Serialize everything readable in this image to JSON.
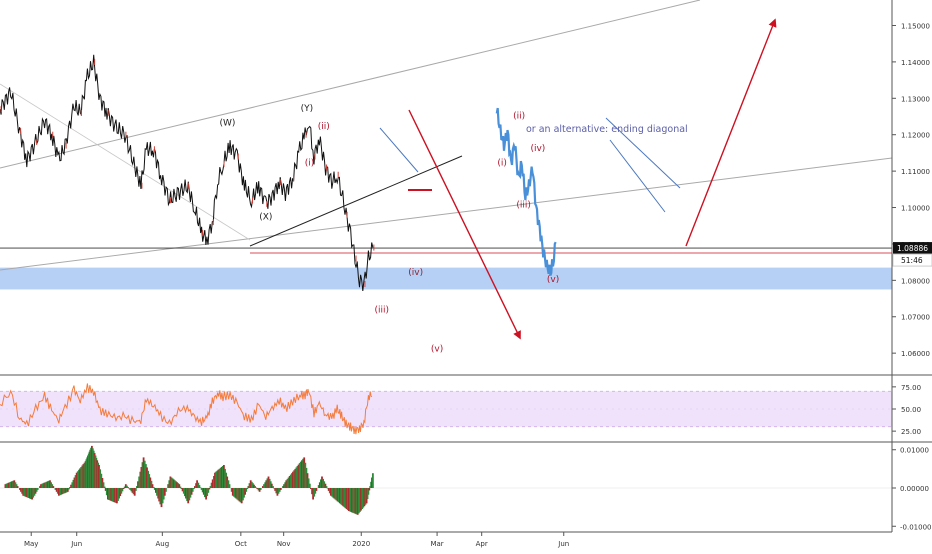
{
  "chart_data": {
    "type": "line",
    "main": {
      "price_ticks": [
        "1.15000",
        "1.14000",
        "1.13000",
        "1.12000",
        "1.11000",
        "1.10000",
        "1.09000",
        "1.08000",
        "1.07000",
        "1.06000"
      ],
      "ylim": [
        1.054,
        1.157
      ],
      "last_price": "1.08886",
      "countdown": "51:46",
      "support_zone": [
        1.0775,
        1.0835
      ],
      "horizontal_levels": [
        1.08886,
        1.0875
      ],
      "wave_labels": [
        {
          "text": "(W)",
          "t": 0.255,
          "p": 1.1225,
          "color": "#222222"
        },
        {
          "text": "(X)",
          "t": 0.298,
          "p": 1.0967,
          "color": "#222222"
        },
        {
          "text": "(Y)",
          "t": 0.344,
          "p": 1.1265,
          "color": "#222222"
        },
        {
          "text": "(ii)",
          "t": 0.363,
          "p": 1.1215,
          "color": "#b0132b"
        },
        {
          "text": "(i)",
          "t": 0.347,
          "p": 1.1115,
          "color": "#b0132b"
        },
        {
          "text": "(iv)",
          "t": 0.466,
          "p": 1.0815,
          "color": "#8e2430"
        },
        {
          "text": "(iii)",
          "t": 0.428,
          "p": 1.0712,
          "color": "#b0132b"
        },
        {
          "text": "(v)",
          "t": 0.49,
          "p": 1.0605,
          "color": "#b0132b"
        },
        {
          "text": "(ii)",
          "t": 0.582,
          "p": 1.1245,
          "color": "#b0132b"
        },
        {
          "text": "(i)",
          "t": 0.563,
          "p": 1.1115,
          "color": "#b0132b"
        },
        {
          "text": "(iv)",
          "t": 0.603,
          "p": 1.1155,
          "color": "#b0132b"
        },
        {
          "text": "(iii)",
          "t": 0.587,
          "p": 1.1,
          "color": "#b0132b"
        },
        {
          "text": "(v)",
          "t": 0.62,
          "p": 1.0795,
          "color": "#b0132b"
        }
      ],
      "annotation": "or an alternative: ending diagonal",
      "price_series": [
        [
          0.0,
          1.127
        ],
        [
          0.012,
          1.132
        ],
        [
          0.022,
          1.121
        ],
        [
          0.03,
          1.113
        ],
        [
          0.04,
          1.118
        ],
        [
          0.05,
          1.124
        ],
        [
          0.058,
          1.12
        ],
        [
          0.066,
          1.113
        ],
        [
          0.073,
          1.117
        ],
        [
          0.083,
          1.128
        ],
        [
          0.09,
          1.126
        ],
        [
          0.098,
          1.136
        ],
        [
          0.105,
          1.14
        ],
        [
          0.112,
          1.13
        ],
        [
          0.12,
          1.126
        ],
        [
          0.13,
          1.122
        ],
        [
          0.14,
          1.12
        ],
        [
          0.15,
          1.112
        ],
        [
          0.158,
          1.106
        ],
        [
          0.164,
          1.116
        ],
        [
          0.172,
          1.116
        ],
        [
          0.18,
          1.109
        ],
        [
          0.19,
          1.102
        ],
        [
          0.2,
          1.104
        ],
        [
          0.21,
          1.106
        ],
        [
          0.218,
          1.1
        ],
        [
          0.226,
          1.093
        ],
        [
          0.232,
          1.091
        ],
        [
          0.238,
          1.096
        ],
        [
          0.244,
          1.107
        ],
        [
          0.25,
          1.112
        ],
        [
          0.258,
          1.117
        ],
        [
          0.266,
          1.114
        ],
        [
          0.274,
          1.106
        ],
        [
          0.282,
          1.102
        ],
        [
          0.29,
          1.106
        ],
        [
          0.298,
          1.101
        ],
        [
          0.305,
          1.103
        ],
        [
          0.313,
          1.107
        ],
        [
          0.32,
          1.104
        ],
        [
          0.328,
          1.108
        ],
        [
          0.336,
          1.116
        ],
        [
          0.342,
          1.12
        ],
        [
          0.346,
          1.124
        ],
        [
          0.352,
          1.114
        ],
        [
          0.358,
          1.119
        ],
        [
          0.365,
          1.111
        ],
        [
          0.372,
          1.107
        ],
        [
          0.378,
          1.109
        ],
        [
          0.383,
          1.104
        ],
        [
          0.388,
          1.098
        ],
        [
          0.393,
          1.093
        ],
        [
          0.398,
          1.086
        ],
        [
          0.403,
          1.08
        ],
        [
          0.408,
          1.079
        ],
        [
          0.413,
          1.086
        ],
        [
          0.418,
          1.089
        ]
      ],
      "alt_path": [
        [
          0.557,
          1.127
        ],
        [
          0.561,
          1.121
        ],
        [
          0.565,
          1.117
        ],
        [
          0.569,
          1.121
        ],
        [
          0.573,
          1.112
        ],
        [
          0.577,
          1.118
        ],
        [
          0.581,
          1.108
        ],
        [
          0.585,
          1.112
        ],
        [
          0.589,
          1.103
        ],
        [
          0.593,
          1.106
        ],
        [
          0.597,
          1.111
        ],
        [
          0.601,
          1.1
        ],
        [
          0.605,
          1.094
        ],
        [
          0.609,
          1.088
        ],
        [
          0.613,
          1.084
        ],
        [
          0.617,
          1.082
        ],
        [
          0.621,
          1.086
        ],
        [
          0.623,
          1.0905
        ]
      ]
    },
    "rsi": {
      "ticks": [
        "75.00",
        "50.00",
        "25.00"
      ],
      "ylim": [
        15,
        85
      ],
      "band": [
        30,
        70
      ],
      "values": [
        [
          0.0,
          55
        ],
        [
          0.012,
          70
        ],
        [
          0.022,
          40
        ],
        [
          0.03,
          32
        ],
        [
          0.04,
          50
        ],
        [
          0.05,
          65
        ],
        [
          0.058,
          48
        ],
        [
          0.066,
          38
        ],
        [
          0.073,
          52
        ],
        [
          0.083,
          72
        ],
        [
          0.09,
          60
        ],
        [
          0.098,
          74
        ],
        [
          0.105,
          70
        ],
        [
          0.112,
          48
        ],
        [
          0.12,
          45
        ],
        [
          0.13,
          40
        ],
        [
          0.14,
          42
        ],
        [
          0.15,
          35
        ],
        [
          0.158,
          38
        ],
        [
          0.164,
          60
        ],
        [
          0.172,
          55
        ],
        [
          0.18,
          42
        ],
        [
          0.19,
          33
        ],
        [
          0.2,
          48
        ],
        [
          0.21,
          52
        ],
        [
          0.218,
          40
        ],
        [
          0.226,
          36
        ],
        [
          0.232,
          40
        ],
        [
          0.238,
          58
        ],
        [
          0.244,
          68
        ],
        [
          0.25,
          64
        ],
        [
          0.258,
          66
        ],
        [
          0.266,
          56
        ],
        [
          0.274,
          42
        ],
        [
          0.282,
          38
        ],
        [
          0.29,
          55
        ],
        [
          0.298,
          42
        ],
        [
          0.305,
          50
        ],
        [
          0.313,
          60
        ],
        [
          0.32,
          50
        ],
        [
          0.328,
          58
        ],
        [
          0.336,
          66
        ],
        [
          0.342,
          66
        ],
        [
          0.346,
          72
        ],
        [
          0.352,
          45
        ],
        [
          0.358,
          56
        ],
        [
          0.365,
          44
        ],
        [
          0.372,
          40
        ],
        [
          0.378,
          50
        ],
        [
          0.383,
          42
        ],
        [
          0.388,
          33
        ],
        [
          0.393,
          30
        ],
        [
          0.398,
          26
        ],
        [
          0.403,
          28
        ],
        [
          0.408,
          34
        ],
        [
          0.413,
          64
        ],
        [
          0.418,
          67
        ]
      ]
    },
    "macd": {
      "ticks": [
        "0.01000",
        "0.00000",
        "-0.01000"
      ],
      "ylim": [
        -0.0115,
        0.0115
      ],
      "values": [
        [
          0.005,
          0.001
        ],
        [
          0.015,
          0.002
        ],
        [
          0.025,
          -0.002
        ],
        [
          0.035,
          -0.003
        ],
        [
          0.045,
          0.001
        ],
        [
          0.055,
          0.002
        ],
        [
          0.065,
          -0.002
        ],
        [
          0.075,
          -0.001
        ],
        [
          0.085,
          0.004
        ],
        [
          0.095,
          0.007
        ],
        [
          0.102,
          0.011
        ],
        [
          0.11,
          0.006
        ],
        [
          0.12,
          -0.003
        ],
        [
          0.13,
          -0.004
        ],
        [
          0.14,
          0.001
        ],
        [
          0.15,
          -0.002
        ],
        [
          0.16,
          0.008
        ],
        [
          0.17,
          0.001
        ],
        [
          0.18,
          -0.005
        ],
        [
          0.19,
          0.003
        ],
        [
          0.2,
          0.001
        ],
        [
          0.21,
          -0.004
        ],
        [
          0.22,
          0.002
        ],
        [
          0.23,
          -0.003
        ],
        [
          0.24,
          0.004
        ],
        [
          0.25,
          0.006
        ],
        [
          0.26,
          -0.002
        ],
        [
          0.27,
          -0.004
        ],
        [
          0.28,
          0.002
        ],
        [
          0.29,
          -0.001
        ],
        [
          0.3,
          0.003
        ],
        [
          0.31,
          -0.002
        ],
        [
          0.32,
          0.002
        ],
        [
          0.33,
          0.005
        ],
        [
          0.34,
          0.008
        ],
        [
          0.35,
          -0.003
        ],
        [
          0.36,
          0.003
        ],
        [
          0.37,
          -0.002
        ],
        [
          0.38,
          -0.004
        ],
        [
          0.39,
          -0.006
        ],
        [
          0.4,
          -0.007
        ],
        [
          0.41,
          -0.004
        ],
        [
          0.418,
          0.005
        ]
      ]
    },
    "x_ticks": [
      {
        "label": "May",
        "t": 0.035
      },
      {
        "label": "Jun",
        "t": 0.086
      },
      {
        "label": "Aug",
        "t": 0.182
      },
      {
        "label": "Oct",
        "t": 0.27
      },
      {
        "label": "Nov",
        "t": 0.318
      },
      {
        "label": "2020",
        "t": 0.405
      },
      {
        "label": "Mar",
        "t": 0.49
      },
      {
        "label": "Apr",
        "t": 0.54
      },
      {
        "label": "Jun",
        "t": 0.632
      }
    ],
    "colors": {
      "price": "#111111",
      "alt_path": "#4a90d9",
      "arrows": "#cc1122",
      "support_zone": "#a9c7f2",
      "rsi_line": "#f47c3c",
      "rsi_band": "#f0e2fb",
      "macd_up": "#2e8b3a",
      "macd_down": "#b0282c",
      "annotation": "#5b5fa8"
    }
  }
}
